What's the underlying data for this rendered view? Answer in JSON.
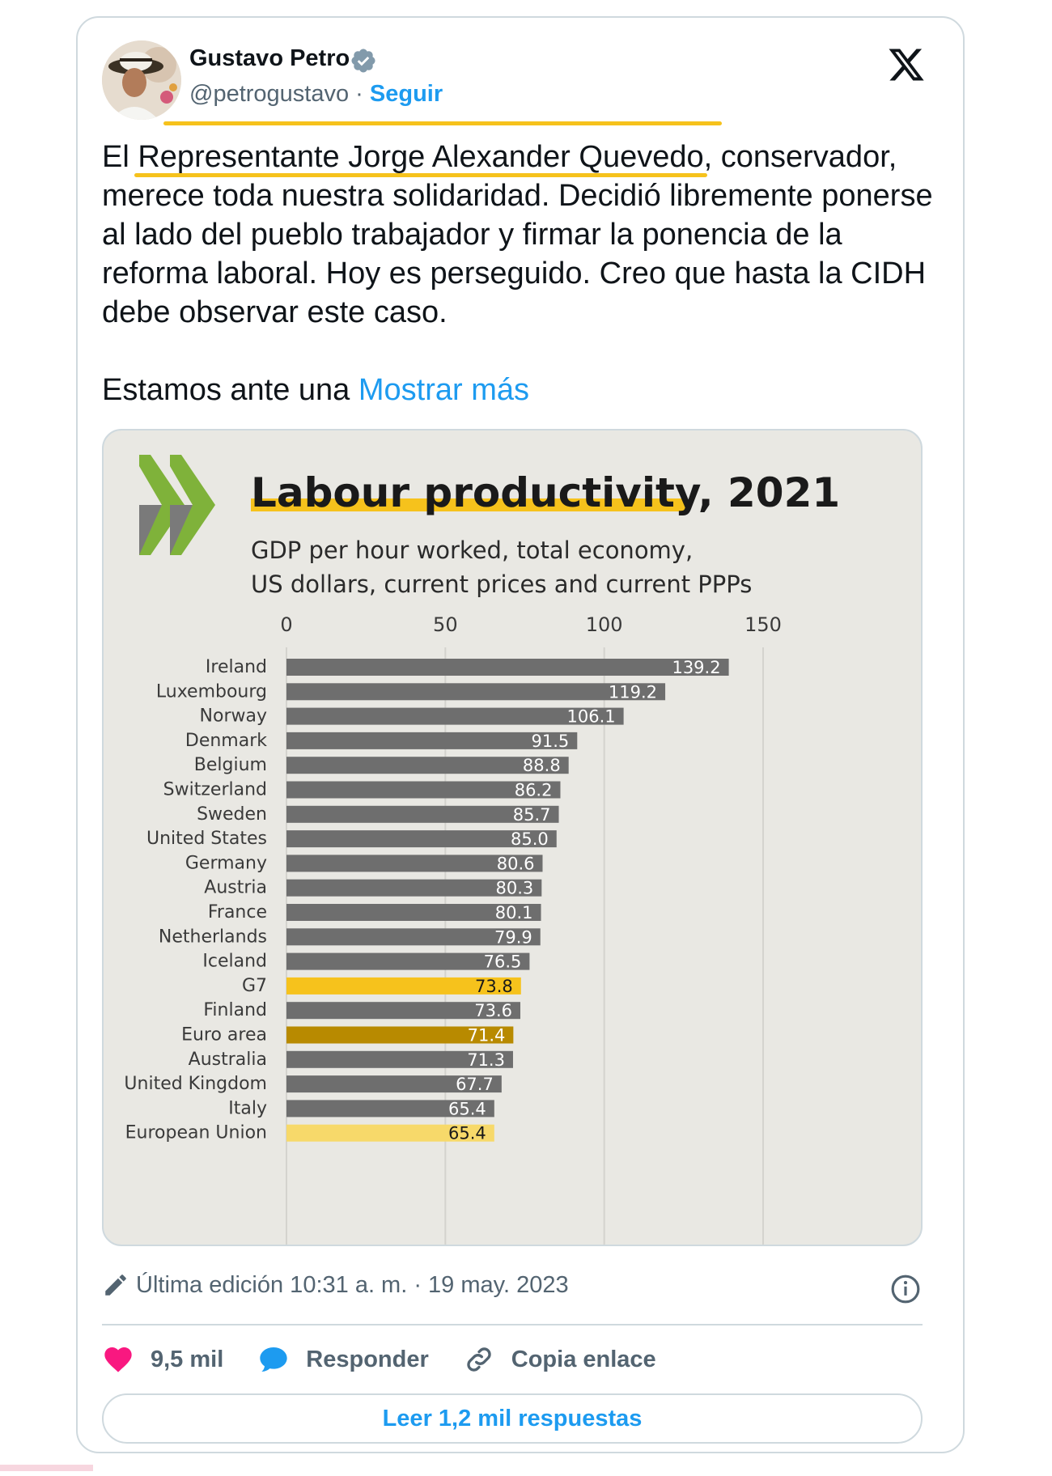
{
  "tweet": {
    "author_name": "Gustavo Petro",
    "handle": "@petrogustavo",
    "separator": "·",
    "follow_label": "Seguir",
    "text_before_highlight": "El ",
    "text_highlight": "Representante Jorge Alexander Quevedo",
    "text_after_highlight": ", conservador, merece toda nuestra solidaridad. Decidió libremente ponerse al lado del pueblo trabajador y firmar la ponencia de la reforma laboral. Hoy es perseguido. Creo que hasta la CIDH debe observar este caso.",
    "text_second": "Estamos ante una ",
    "show_more": "Mostrar más",
    "edited": "Última edición 10:31 a. m. · 19 may. 2023",
    "likes": "9,5 mil",
    "reply_label": "Responder",
    "copy_link_label": "Copia enlace",
    "read_replies_label": "Leer 1,2 mil respuestas"
  },
  "colors": {
    "accent_blue": "#1d9bf0",
    "like_pink": "#f91880",
    "highlight_yellow": "#f6c21c",
    "bar_gray": "#6e6e6e",
    "bar_g7": "#f6c21c",
    "bar_euro": "#b88a00",
    "bar_eu": "#f7d96a"
  },
  "chart_data": {
    "type": "bar",
    "orientation": "horizontal",
    "title": "Labour productivity, 2021",
    "subtitle_line1": "GDP per hour worked, total economy,",
    "subtitle_line2": "US dollars, current prices and current PPPs",
    "xlim": [
      0,
      150
    ],
    "xticks": [
      0,
      50,
      100,
      150
    ],
    "categories": [
      "Ireland",
      "Luxembourg",
      "Norway",
      "Denmark",
      "Belgium",
      "Switzerland",
      "Sweden",
      "United States",
      "Germany",
      "Austria",
      "France",
      "Netherlands",
      "Iceland",
      "G7",
      "Finland",
      "Euro area",
      "Australia",
      "United Kingdom",
      "Italy",
      "European Union"
    ],
    "values": [
      139.2,
      119.2,
      106.1,
      91.5,
      88.8,
      86.2,
      85.7,
      85.0,
      80.6,
      80.3,
      80.1,
      79.9,
      76.5,
      73.8,
      73.6,
      71.4,
      71.3,
      67.7,
      65.4,
      65.4
    ],
    "labels": [
      "139.2",
      "119.2",
      "106.1",
      "91.5",
      "88.8",
      "86.2",
      "85.7",
      "85.0",
      "80.6",
      "80.3",
      "80.1",
      "79.9",
      "76.5",
      "73.8",
      "73.6",
      "71.4",
      "71.3",
      "67.7",
      "65.4",
      "65.4"
    ],
    "highlight": {
      "G7": "g7",
      "Euro area": "euro",
      "European Union": "eu"
    },
    "grid": true
  }
}
